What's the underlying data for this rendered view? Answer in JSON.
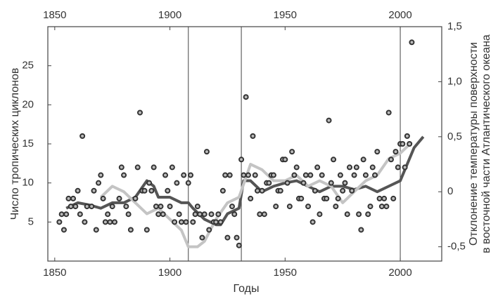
{
  "chart_data": {
    "type": "scatter",
    "xlabel": "Годы",
    "ylabel": "Число тропических циклонов",
    "y2label": [
      "Отклонение температуры поверхности",
      "в восточной части Атлантического океана"
    ],
    "xlim": [
      1847,
      2018
    ],
    "xticks": [
      1850,
      1900,
      1950,
      2000
    ],
    "ylim": [
      0,
      30
    ],
    "yticks": [
      5,
      10,
      15,
      20,
      25
    ],
    "y2lim": [
      -0.63,
      1.5
    ],
    "y2ticks": [
      {
        "value": -0.5,
        "label": "-0,5"
      },
      0,
      {
        "value": 0.5,
        "label": "0,5"
      },
      {
        "value": 1.0,
        "label": "1,0"
      },
      {
        "value": 1.5,
        "label": "1,5"
      }
    ],
    "vlines": [
      1908,
      1931,
      2000
    ],
    "series": [
      {
        "type": "scatter",
        "color": "#333333",
        "x": [
          1852,
          1853,
          1854,
          1855,
          1856,
          1857,
          1858,
          1859,
          1860,
          1861,
          1862,
          1863,
          1864,
          1866,
          1867,
          1868,
          1869,
          1870,
          1871,
          1872,
          1873,
          1874,
          1875,
          1876,
          1878,
          1879,
          1880,
          1881,
          1882,
          1883,
          1885,
          1886,
          1887,
          1888,
          1889,
          1890,
          1891,
          1892,
          1893,
          1894,
          1895,
          1896,
          1897,
          1898,
          1899,
          1900,
          1901,
          1902,
          1903,
          1904,
          1905,
          1906,
          1907,
          1908,
          1909,
          1910,
          1911,
          1912,
          1913,
          1914,
          1915,
          1916,
          1917,
          1918,
          1919,
          1920,
          1921,
          1922,
          1923,
          1924,
          1925,
          1926,
          1927,
          1928,
          1929,
          1930,
          1931,
          1932,
          1933,
          1934,
          1935,
          1936,
          1937,
          1938,
          1939,
          1940,
          1941,
          1942,
          1943,
          1944,
          1945,
          1946,
          1947,
          1948,
          1949,
          1950,
          1951,
          1952,
          1953,
          1954,
          1955,
          1956,
          1957,
          1958,
          1959,
          1960,
          1961,
          1962,
          1963,
          1964,
          1965,
          1966,
          1967,
          1968,
          1969,
          1970,
          1971,
          1972,
          1973,
          1974,
          1975,
          1976,
          1977,
          1978,
          1979,
          1980,
          1981,
          1982,
          1983,
          1984,
          1985,
          1986,
          1987,
          1988,
          1989,
          1990,
          1991,
          1992,
          1993,
          1994,
          1995,
          1996,
          1997,
          1998,
          1999,
          2000,
          2001,
          2002,
          2003,
          2004,
          2005
        ],
        "values": [
          5,
          6,
          4,
          6,
          8,
          7,
          8,
          7,
          9,
          6,
          16,
          5,
          7,
          7,
          9,
          4,
          10,
          11,
          8,
          5,
          6,
          5,
          7,
          5,
          8,
          12,
          11,
          7,
          6,
          4,
          8,
          12,
          19,
          9,
          9,
          4,
          10,
          9,
          12,
          7,
          6,
          7,
          6,
          11,
          9,
          7,
          12,
          5,
          10,
          6,
          5,
          11,
          5,
          10,
          11,
          5,
          6,
          7,
          6,
          3,
          6,
          14,
          4,
          6,
          5,
          5,
          6,
          5,
          9,
          11,
          3,
          11,
          7,
          6,
          3,
          2,
          13,
          11,
          21,
          11,
          8,
          16,
          11,
          9,
          6,
          9,
          6,
          10,
          10,
          11,
          11,
          7,
          9,
          9,
          13,
          13,
          10,
          7,
          14,
          11,
          12,
          8,
          8,
          10,
          11,
          7,
          11,
          5,
          9,
          12,
          6,
          11,
          8,
          8,
          18,
          10,
          13,
          7,
          8,
          11,
          9,
          10,
          6,
          12,
          9,
          11,
          12,
          6,
          4,
          13,
          11,
          6,
          7,
          12,
          11,
          14,
          8,
          7,
          8,
          7,
          19,
          13,
          8,
          14,
          12,
          15,
          15,
          12,
          16,
          15,
          28
        ]
      },
      {
        "type": "line",
        "axis": "y2",
        "color": "#555555",
        "x": [
          1855,
          1860,
          1865,
          1870,
          1875,
          1880,
          1885,
          1890,
          1893,
          1895,
          1900,
          1905,
          1908,
          1910,
          1915,
          1920,
          1922,
          1925,
          1930,
          1932,
          1935,
          1940,
          1945,
          1950,
          1955,
          1960,
          1965,
          1970,
          1975,
          1980,
          1985,
          1990,
          1995,
          2000,
          2003,
          2006,
          2010
        ],
        "values": [
          -0.15,
          -0.1,
          -0.12,
          -0.15,
          -0.1,
          -0.1,
          -0.05,
          0.1,
          0.05,
          -0.05,
          -0.05,
          -0.1,
          -0.1,
          -0.15,
          -0.25,
          -0.3,
          -0.3,
          -0.2,
          -0.15,
          0.1,
          0.1,
          0,
          0.05,
          0.08,
          0.1,
          0.05,
          0,
          0.05,
          0.05,
          0.02,
          0.05,
          0,
          0.05,
          0.1,
          0.25,
          0.4,
          0.5
        ]
      },
      {
        "type": "line",
        "axis": "y2",
        "color": "#c4c4c4",
        "x": [
          1870,
          1875,
          1880,
          1885,
          1890,
          1895,
          1900,
          1905,
          1908,
          1912,
          1915,
          1920,
          1925,
          1930,
          1935,
          1940,
          1945,
          1950,
          1955,
          1960,
          1965,
          1970,
          1975,
          1980,
          1985,
          1990,
          1995,
          2000,
          2005
        ],
        "values": [
          -0.05,
          0.05,
          0,
          -0.1,
          -0.2,
          -0.15,
          -0.25,
          -0.35,
          -0.5,
          -0.5,
          -0.45,
          -0.25,
          -0.1,
          -0.05,
          0.25,
          0.2,
          0.1,
          0.1,
          0.15,
          0.05,
          0.1,
          0.05,
          -0.1,
          0,
          0.1,
          0.15,
          0.3,
          0.35,
          0.45
        ]
      }
    ]
  }
}
